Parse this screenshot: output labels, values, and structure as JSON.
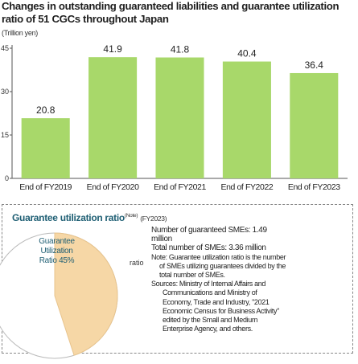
{
  "title": "Changes in outstanding guaranteed liabilities and guarantee utilization ratio of 51 CGCs throughout Japan",
  "unit_label": "(Trillion yen)",
  "chart_data": {
    "type": "bar",
    "categories": [
      "End of FY2019",
      "End of FY2020",
      "End of FY2021",
      "End of FY2022",
      "End of FY2023"
    ],
    "values": [
      20.8,
      41.9,
      41.8,
      40.4,
      36.4
    ],
    "value_labels": [
      "20.8",
      "41.9",
      "41.8",
      "40.4",
      "36.4"
    ],
    "ylabel": "(Trillion yen)",
    "ylim": [
      0,
      45
    ],
    "yticks": [
      0,
      15,
      30,
      45
    ],
    "grid": false,
    "bar_color": "#a8d86a"
  },
  "panel": {
    "title": "Guarantee utilization ratio",
    "title_note": "(Note)",
    "title_fy": "(FY2023)",
    "pie_label": "Guarantee Utilization Ratio 45%",
    "ratio_label": "ratio",
    "pie_value_percent": 45,
    "pie_color_filled": "#f6d7a6",
    "pie_color_rest": "#ffffff",
    "line1": "Number of guaranteed SMEs: 1.49 million",
    "line2": "Total number of SMEs: 3.36 million",
    "note_head": "Note: Guarantee utilization ratio is the number",
    "note_body": "of SMEs utilizing guarantees divided by the total number of SMEs.",
    "source_head": "Sources: Ministry of Internal Affairs and",
    "source_body": "Communications and Ministry of Economy, Trade and Industry, \"2021 Economic Census for Business Activity\" edited by the Small and Medium Enterprise Agency, and others."
  }
}
